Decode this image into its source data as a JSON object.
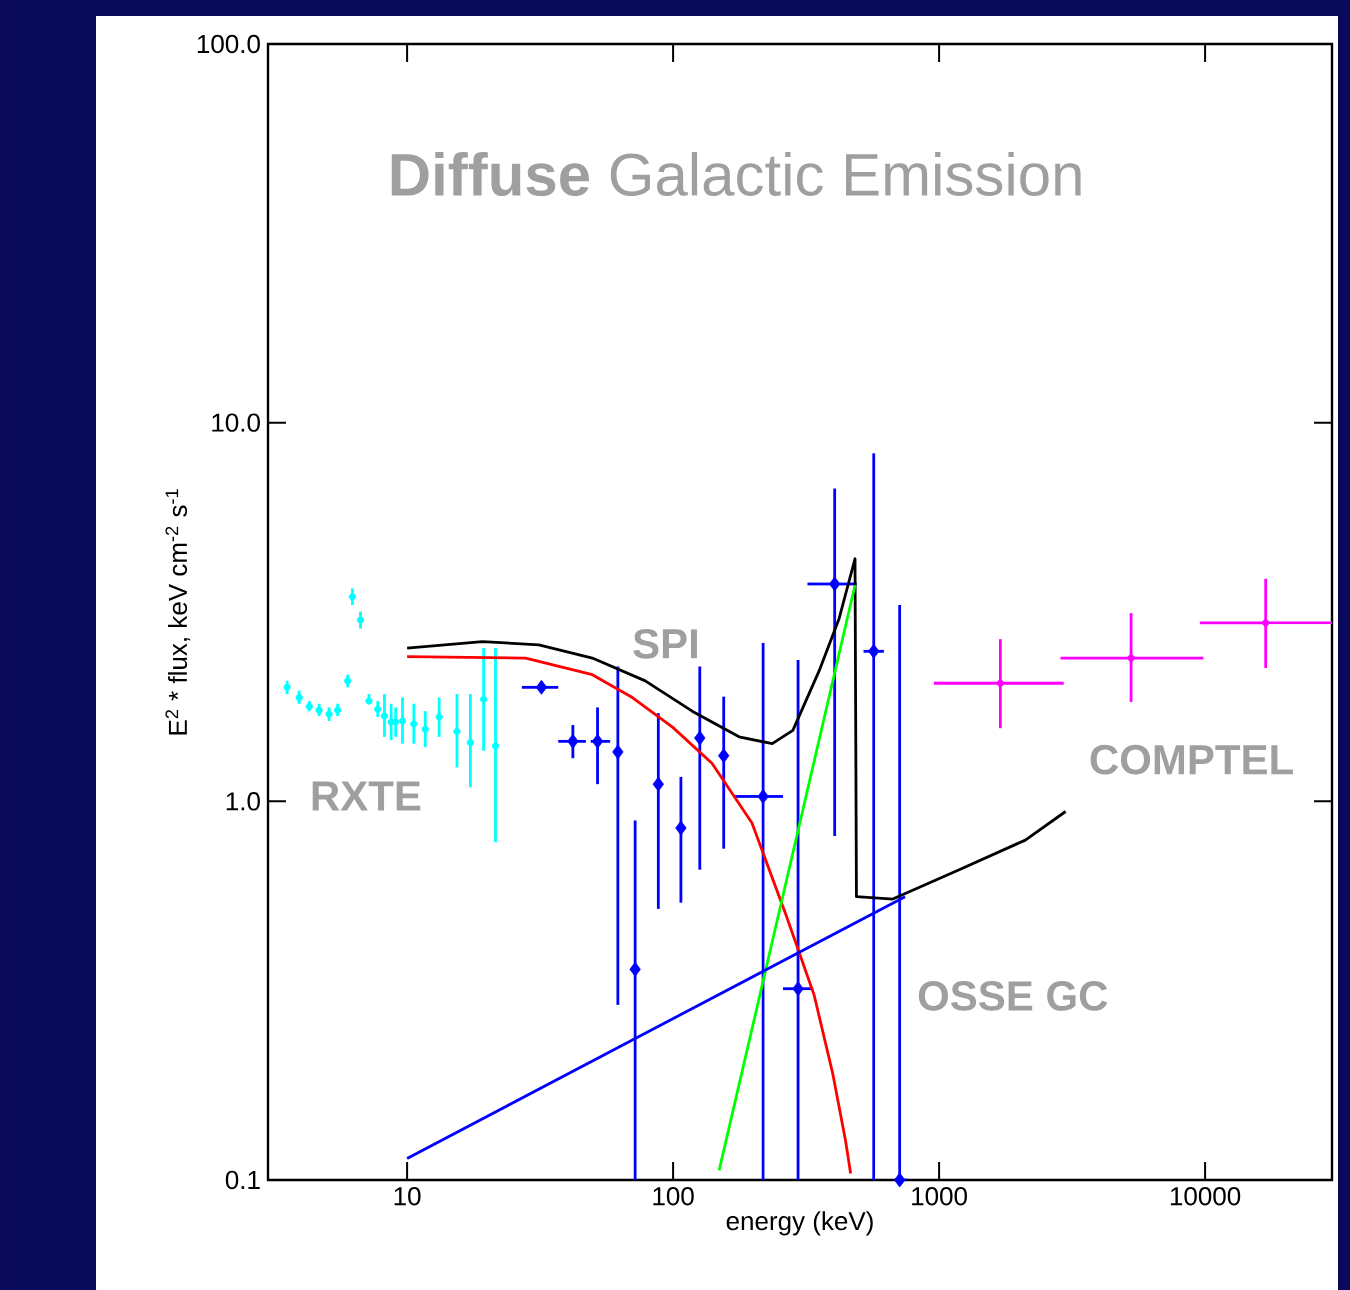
{
  "chart_data": {
    "type": "line",
    "title": "**Diffuse** Galactic Emission",
    "xlabel": "energy (keV)",
    "ylabel": "E$^{2}$ * flux, keV cm$^{-2}$ s$^{-1}$",
    "log": "xy",
    "xlim": [
      3,
      30000
    ],
    "ylim": [
      0.1,
      100
    ],
    "xticks": [
      10,
      100,
      1000,
      10000
    ],
    "yticks": [
      0.1,
      {
        "value": 1,
        "label": "1.0"
      },
      {
        "value": 10,
        "label": "10.0"
      },
      {
        "value": 100,
        "label": "100.0"
      }
    ],
    "series": [
      {
        "type": "scatter",
        "color": "#00ffff",
        "x": [
          3.54,
          3.93,
          4.29,
          4.67,
          5.09,
          5.48,
          5.98,
          6.23,
          6.68,
          7.19,
          7.76,
          8.22,
          8.71,
          9.06,
          9.61,
          10.6,
          11.7,
          13.2,
          15.4,
          17.3,
          19.4,
          21.5
        ],
        "values": [
          2.0,
          1.88,
          1.78,
          1.74,
          1.7,
          1.74,
          2.08,
          3.47,
          3.01,
          1.84,
          1.75,
          1.68,
          1.62,
          1.62,
          1.63,
          1.6,
          1.55,
          1.67,
          1.53,
          1.43,
          1.86,
          1.4
        ],
        "errors": [
          [
            1.92,
            2.08
          ],
          [
            1.81,
            1.96
          ],
          [
            1.73,
            1.84
          ],
          [
            1.68,
            1.81
          ],
          [
            1.63,
            1.77
          ],
          [
            1.68,
            1.81
          ],
          [
            2.0,
            2.16
          ],
          [
            3.3,
            3.65
          ],
          [
            2.86,
            3.17
          ],
          [
            1.81,
            1.92
          ],
          [
            1.67,
            1.84
          ],
          [
            1.48,
            1.92
          ],
          [
            1.45,
            1.81
          ],
          [
            1.48,
            1.77
          ],
          [
            1.42,
            1.88
          ],
          [
            1.42,
            1.81
          ],
          [
            1.39,
            1.73
          ],
          [
            1.48,
            1.88
          ],
          [
            1.23,
            1.92
          ],
          [
            1.09,
            1.92
          ],
          [
            1.36,
            2.54
          ],
          [
            0.78,
            2.54
          ]
        ]
      },
      {
        "type": "scatter",
        "marker": "diamond",
        "color": "#0000ff",
        "x": [
          32,
          42,
          52,
          62,
          72,
          88,
          107,
          126,
          155,
          218,
          295,
          405,
          568,
          711
        ],
        "values": [
          2.0,
          1.44,
          1.44,
          1.35,
          0.36,
          1.11,
          0.85,
          1.47,
          1.32,
          1.03,
          0.32,
          3.75,
          2.49,
          0.1
        ],
        "errors": [
          null,
          [
            1.3,
            1.59
          ],
          [
            1.11,
            1.77
          ],
          [
            0.29,
            2.27
          ],
          [
            0.1,
            0.89
          ],
          [
            0.52,
            1.71
          ],
          [
            0.54,
            1.16
          ],
          [
            0.66,
            2.27
          ],
          [
            0.75,
            1.89
          ],
          [
            0.1,
            2.62
          ],
          [
            0.1,
            2.36
          ],
          [
            0.81,
            6.7
          ],
          [
            0.1,
            8.3
          ],
          [
            0.1,
            3.3
          ]
        ],
        "xerrors": [
          [
            27,
            37
          ],
          [
            37,
            47
          ],
          [
            49,
            58
          ],
          null,
          null,
          null,
          null,
          null,
          null,
          [
            171,
            259
          ],
          [
            259,
            336
          ],
          [
            320,
            490
          ],
          [
            520,
            620
          ],
          [
            680,
            760
          ]
        ]
      },
      {
        "type": "scatter",
        "color": "#ff00ff",
        "x": [
          1700,
          5270,
          16900
        ],
        "values": [
          2.05,
          2.39,
          2.96
        ],
        "errors": [
          [
            1.56,
            2.68
          ],
          [
            1.83,
            3.14
          ],
          [
            2.25,
            3.87
          ]
        ],
        "xerrors": [
          [
            956,
            2940
          ],
          [
            2860,
            9850
          ],
          [
            9560,
            30000
          ]
        ]
      },
      {
        "color": "#000000",
        "x": [
          10,
          19.2,
          31.3,
          49.7,
          78.6,
          118,
          177,
          236,
          282,
          354,
          421,
          483,
          489,
          670,
          1190,
          2110,
          2990
        ],
        "values": [
          2.54,
          2.64,
          2.59,
          2.39,
          2.08,
          1.73,
          1.48,
          1.42,
          1.54,
          2.21,
          3.04,
          4.37,
          0.56,
          0.552,
          0.66,
          0.79,
          0.94
        ]
      },
      {
        "color": "#ff0000",
        "x": [
          10,
          27.9,
          49.7,
          70.3,
          99.5,
          140,
          198,
          266,
          339,
          399,
          445,
          465
        ],
        "values": [
          2.41,
          2.39,
          2.16,
          1.88,
          1.57,
          1.26,
          0.876,
          0.5,
          0.308,
          0.19,
          0.127,
          0.104
        ]
      },
      {
        "color": "#00ff00",
        "x": [
          149,
          483
        ],
        "values": [
          0.106,
          3.72
        ]
      },
      {
        "color": "#0000ff",
        "x": [
          10,
          745
        ],
        "values": [
          0.114,
          0.56
        ]
      }
    ],
    "annotations": [
      "SPI",
      "RXTE",
      "COMPTEL",
      "OSSE GC"
    ]
  }
}
